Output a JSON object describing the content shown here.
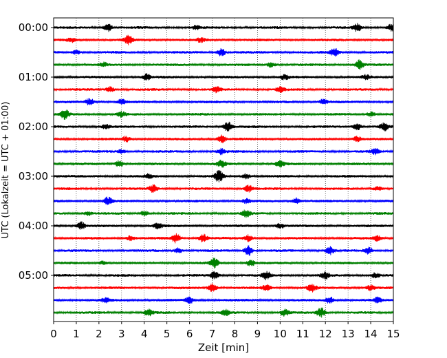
{
  "chart_data": {
    "type": "line",
    "title": "",
    "xlabel": "Zeit  [min]",
    "ylabel": "UTC (Lokalzeit = UTC + 01:00)",
    "xlim": [
      0,
      15
    ],
    "xticks": [
      "0",
      "1",
      "2",
      "3",
      "4",
      "5",
      "6",
      "7",
      "8",
      "9",
      "10",
      "11",
      "12",
      "13",
      "14",
      "15"
    ],
    "yticks": [
      {
        "label": "00:00",
        "trace": 0
      },
      {
        "label": "01:00",
        "trace": 4
      },
      {
        "label": "02:00",
        "trace": 8
      },
      {
        "label": "03:00",
        "trace": 12
      },
      {
        "label": "04:00",
        "trace": 16
      },
      {
        "label": "05:00",
        "trace": 20
      }
    ],
    "grid": "vertical dotted",
    "legend": "none",
    "trace_interval_minutes": 15,
    "trace_count": 24,
    "colors": [
      "#000000",
      "#ff0000",
      "#0000ff",
      "#008000"
    ],
    "series": [
      {
        "start": "00:00",
        "color": "#000000",
        "bursts": [
          [
            2.4,
            0.6
          ],
          [
            13.4,
            0.6
          ],
          [
            14.9,
            0.5
          ],
          [
            6.3,
            0.3
          ]
        ]
      },
      {
        "start": "00:15",
        "color": "#ff0000",
        "bursts": [
          [
            3.3,
            0.7
          ],
          [
            0.8,
            0.3
          ],
          [
            6.5,
            0.3
          ]
        ]
      },
      {
        "start": "00:30",
        "color": "#0000ff",
        "bursts": [
          [
            7.4,
            0.6
          ],
          [
            12.4,
            0.6
          ],
          [
            1.0,
            0.3
          ]
        ]
      },
      {
        "start": "00:45",
        "color": "#008000",
        "bursts": [
          [
            13.5,
            0.7
          ],
          [
            9.6,
            0.4
          ],
          [
            2.2,
            0.3
          ]
        ]
      },
      {
        "start": "01:00",
        "color": "#000000",
        "bursts": [
          [
            4.1,
            0.5
          ],
          [
            10.2,
            0.4
          ],
          [
            13.8,
            0.3
          ]
        ]
      },
      {
        "start": "01:15",
        "color": "#ff0000",
        "bursts": [
          [
            2.5,
            0.4
          ],
          [
            7.2,
            0.4
          ],
          [
            10.0,
            0.4
          ]
        ]
      },
      {
        "start": "01:30",
        "color": "#0000ff",
        "bursts": [
          [
            1.6,
            0.5
          ],
          [
            3.0,
            0.4
          ],
          [
            11.9,
            0.4
          ]
        ]
      },
      {
        "start": "01:45",
        "color": "#008000",
        "bursts": [
          [
            0.5,
            0.7
          ],
          [
            3.0,
            0.4
          ],
          [
            14.0,
            0.4
          ]
        ]
      },
      {
        "start": "02:00",
        "color": "#000000",
        "bursts": [
          [
            7.7,
            0.8
          ],
          [
            13.4,
            0.5
          ],
          [
            14.6,
            0.6
          ],
          [
            2.3,
            0.3
          ]
        ]
      },
      {
        "start": "02:15",
        "color": "#ff0000",
        "bursts": [
          [
            7.4,
            0.6
          ],
          [
            3.2,
            0.4
          ],
          [
            13.4,
            0.4
          ]
        ]
      },
      {
        "start": "02:30",
        "color": "#0000ff",
        "bursts": [
          [
            7.4,
            0.4
          ],
          [
            14.2,
            0.4
          ],
          [
            3.0,
            0.3
          ]
        ]
      },
      {
        "start": "02:45",
        "color": "#008000",
        "bursts": [
          [
            2.9,
            0.5
          ],
          [
            7.4,
            0.5
          ],
          [
            10.0,
            0.5
          ]
        ]
      },
      {
        "start": "03:00",
        "color": "#000000",
        "bursts": [
          [
            7.3,
            0.9
          ],
          [
            8.5,
            0.4
          ],
          [
            4.2,
            0.3
          ]
        ]
      },
      {
        "start": "03:15",
        "color": "#ff0000",
        "bursts": [
          [
            4.4,
            0.6
          ],
          [
            8.6,
            0.5
          ],
          [
            14.3,
            0.3
          ]
        ]
      },
      {
        "start": "03:30",
        "color": "#0000ff",
        "bursts": [
          [
            2.4,
            0.6
          ],
          [
            10.7,
            0.5
          ],
          [
            8.5,
            0.3
          ]
        ]
      },
      {
        "start": "03:45",
        "color": "#008000",
        "bursts": [
          [
            8.5,
            0.5
          ],
          [
            4.0,
            0.4
          ],
          [
            1.5,
            0.3
          ]
        ]
      },
      {
        "start": "04:00",
        "color": "#000000",
        "bursts": [
          [
            1.2,
            0.6
          ],
          [
            4.6,
            0.5
          ],
          [
            10.0,
            0.4
          ]
        ]
      },
      {
        "start": "04:15",
        "color": "#ff0000",
        "bursts": [
          [
            5.4,
            0.7
          ],
          [
            6.6,
            0.6
          ],
          [
            8.6,
            0.5
          ],
          [
            3.4,
            0.4
          ],
          [
            14.3,
            0.4
          ]
        ]
      },
      {
        "start": "04:30",
        "color": "#0000ff",
        "bursts": [
          [
            8.6,
            0.8
          ],
          [
            12.2,
            0.6
          ],
          [
            13.9,
            0.5
          ],
          [
            5.5,
            0.4
          ]
        ]
      },
      {
        "start": "04:45",
        "color": "#008000",
        "bursts": [
          [
            7.1,
            0.7
          ],
          [
            8.7,
            0.5
          ],
          [
            2.2,
            0.3
          ]
        ]
      },
      {
        "start": "05:00",
        "color": "#000000",
        "bursts": [
          [
            7.1,
            0.6
          ],
          [
            9.4,
            0.6
          ],
          [
            12.0,
            0.5
          ],
          [
            14.2,
            0.4
          ]
        ]
      },
      {
        "start": "05:15",
        "color": "#ff0000",
        "bursts": [
          [
            7.0,
            0.7
          ],
          [
            9.4,
            0.5
          ],
          [
            11.4,
            0.6
          ],
          [
            14.0,
            0.4
          ]
        ]
      },
      {
        "start": "05:30",
        "color": "#0000ff",
        "bursts": [
          [
            6.0,
            0.5
          ],
          [
            12.2,
            0.5
          ],
          [
            14.3,
            0.4
          ],
          [
            2.3,
            0.3
          ]
        ]
      },
      {
        "start": "05:45",
        "color": "#008000",
        "bursts": [
          [
            11.8,
            0.8
          ],
          [
            10.2,
            0.5
          ],
          [
            4.2,
            0.5
          ],
          [
            7.6,
            0.4
          ]
        ]
      }
    ]
  }
}
